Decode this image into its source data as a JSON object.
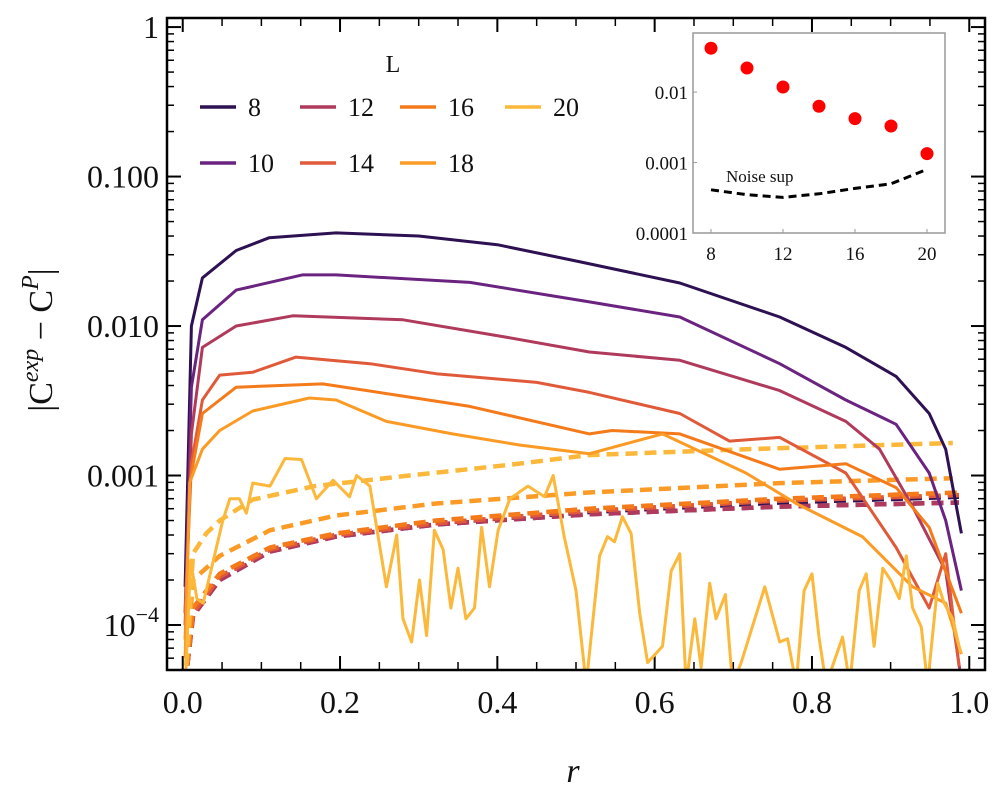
{
  "chart_data": {
    "type": "line",
    "xlabel": "r",
    "ylabel": {
      "base": "|C",
      "sup1": "exp",
      "mid": " − C",
      "sup2": "P",
      "end": "|"
    },
    "xlim": [
      -0.02,
      1.02
    ],
    "ylim": [
      5e-05,
      1.15
    ],
    "yscale": "log",
    "x_ticks": [
      {
        "v": 0.0,
        "label": "0.0"
      },
      {
        "v": 0.2,
        "label": "0.2"
      },
      {
        "v": 0.4,
        "label": "0.4"
      },
      {
        "v": 0.6,
        "label": "0.6"
      },
      {
        "v": 0.8,
        "label": "0.8"
      },
      {
        "v": 1.0,
        "label": "1.0"
      }
    ],
    "y_ticks": [
      {
        "v": 1,
        "label": "1"
      },
      {
        "v": 0.1,
        "label": "0.100"
      },
      {
        "v": 0.01,
        "label": "0.010"
      },
      {
        "v": 0.001,
        "label": "0.001"
      },
      {
        "v": 0.0001,
        "label": "10",
        "sup": "−4"
      }
    ],
    "grid": false,
    "legend": {
      "title": "L",
      "placement": "top-left",
      "columns": 4
    },
    "series": [
      {
        "name": "8",
        "color": "#2d1152",
        "x": [
          0.003,
          0.011,
          0.025,
          0.068,
          0.11,
          0.195,
          0.3,
          0.4,
          0.504,
          0.632,
          0.759,
          0.843,
          0.907,
          0.949,
          0.97,
          0.99
        ],
        "y": [
          0.00018,
          0.01,
          0.021,
          0.032,
          0.039,
          0.042,
          0.04,
          0.035,
          0.027,
          0.0194,
          0.0115,
          0.0072,
          0.0046,
          0.0026,
          0.0015,
          0.00041
        ],
        "noise_x": [
          0.003,
          0.013,
          0.047,
          0.111,
          0.195,
          0.322,
          0.516,
          0.759,
          0.987
        ],
        "noise_y": [
          4e-05,
          0.00012,
          0.00021,
          0.00032,
          0.0004,
          0.00048,
          0.00057,
          0.00066,
          0.00072
        ]
      },
      {
        "name": "10",
        "color": "#6b2380",
        "x": [
          0.003,
          0.011,
          0.025,
          0.068,
          0.152,
          0.195,
          0.365,
          0.517,
          0.632,
          0.759,
          0.843,
          0.907,
          0.949,
          0.97,
          0.99
        ],
        "y": [
          0.00012,
          0.0039,
          0.011,
          0.0174,
          0.022,
          0.022,
          0.0196,
          0.0145,
          0.0115,
          0.0056,
          0.0032,
          0.0022,
          0.00104,
          0.0005,
          0.00017
        ],
        "noise_x": [
          0.003,
          0.013,
          0.047,
          0.111,
          0.195,
          0.322,
          0.516,
          0.759,
          0.987
        ],
        "noise_y": [
          4e-05,
          0.000115,
          0.0002,
          0.00031,
          0.00039,
          0.00047,
          0.00055,
          0.00062,
          0.00066
        ]
      },
      {
        "name": "12",
        "color": "#b03a5c",
        "x": [
          0.003,
          0.011,
          0.025,
          0.068,
          0.14,
          0.28,
          0.407,
          0.517,
          0.632,
          0.759,
          0.843,
          0.886,
          0.928,
          0.97,
          0.988
        ],
        "y": [
          0.0001,
          0.0019,
          0.0072,
          0.01,
          0.0117,
          0.011,
          0.0085,
          0.0067,
          0.0059,
          0.0037,
          0.0023,
          0.0015,
          0.00062,
          0.00023,
          5e-05
        ],
        "noise_x": [
          0.003,
          0.013,
          0.047,
          0.111,
          0.195,
          0.322,
          0.516,
          0.759,
          0.987
        ],
        "noise_y": [
          4e-05,
          0.000115,
          0.0002,
          0.00031,
          0.00039,
          0.00047,
          0.00055,
          0.00062,
          0.00066
        ]
      },
      {
        "name": "14",
        "color": "#e05a3a",
        "x": [
          0.003,
          0.011,
          0.025,
          0.047,
          0.089,
          0.144,
          0.238,
          0.322,
          0.45,
          0.517,
          0.632,
          0.695,
          0.759,
          0.843,
          0.907,
          0.949,
          0.97,
          0.987
        ],
        "y": [
          0.00012,
          0.0012,
          0.0032,
          0.0047,
          0.0049,
          0.0062,
          0.0056,
          0.0048,
          0.0042,
          0.0036,
          0.0026,
          0.0017,
          0.0018,
          0.00104,
          0.00033,
          0.00013,
          0.0003,
          5.3e-05
        ],
        "noise_x": [
          0.003,
          0.013,
          0.047,
          0.111,
          0.195,
          0.322,
          0.516,
          0.759,
          0.987
        ],
        "noise_y": [
          4e-05,
          0.00012,
          0.00021,
          0.00032,
          0.0004,
          0.00048,
          0.00058,
          0.00068,
          0.00074
        ]
      },
      {
        "name": "16",
        "color": "#f47a1a",
        "x": [
          0.003,
          0.009,
          0.025,
          0.068,
          0.178,
          0.28,
          0.365,
          0.517,
          0.546,
          0.632,
          0.759,
          0.843,
          0.907,
          0.949,
          0.99
        ],
        "y": [
          8e-05,
          0.0009,
          0.0026,
          0.0039,
          0.0041,
          0.0034,
          0.0029,
          0.0019,
          0.002,
          0.0019,
          0.0011,
          0.0012,
          0.00083,
          0.00045,
          0.00012
        ],
        "noise_x": [
          0.003,
          0.013,
          0.047,
          0.111,
          0.195,
          0.322,
          0.516,
          0.759,
          0.987
        ],
        "noise_y": [
          4e-05,
          0.00013,
          0.00022,
          0.00033,
          0.00041,
          0.0005,
          0.0006,
          0.0007,
          0.00077
        ]
      },
      {
        "name": "18",
        "color": "#fb9b25",
        "x": [
          0.003,
          0.009,
          0.025,
          0.047,
          0.089,
          0.161,
          0.195,
          0.259,
          0.343,
          0.428,
          0.517,
          0.61,
          0.716,
          0.78,
          0.864,
          0.928,
          0.97,
          0.99
        ],
        "y": [
          6e-05,
          0.0009,
          0.0015,
          0.002,
          0.0027,
          0.0033,
          0.0032,
          0.0023,
          0.0019,
          0.0016,
          0.0014,
          0.0019,
          0.00104,
          0.00065,
          0.00039,
          0.00018,
          0.00014,
          6.4e-05
        ],
        "noise_x": [
          0.003,
          0.013,
          0.047,
          0.111,
          0.195,
          0.322,
          0.516,
          0.759,
          0.979
        ],
        "noise_y": [
          4e-05,
          0.0002,
          0.00029,
          0.00043,
          0.00054,
          0.00065,
          0.00077,
          0.00089,
          0.00096
        ]
      },
      {
        "name": "20",
        "color": "#fbb83a",
        "x": [
          0.004,
          0.01,
          0.018,
          0.026,
          0.051,
          0.06,
          0.072,
          0.081,
          0.089,
          0.111,
          0.13,
          0.151,
          0.17,
          0.191,
          0.212,
          0.221,
          0.238,
          0.259,
          0.272,
          0.28,
          0.291,
          0.301,
          0.31,
          0.32,
          0.331,
          0.341,
          0.35,
          0.36,
          0.371,
          0.38,
          0.39,
          0.401,
          0.416,
          0.439,
          0.46,
          0.471,
          0.485,
          0.5,
          0.513,
          0.53,
          0.54,
          0.549,
          0.559,
          0.57,
          0.581,
          0.591,
          0.61,
          0.621,
          0.632,
          0.64,
          0.651,
          0.659,
          0.67,
          0.678,
          0.69,
          0.699,
          0.71,
          0.74,
          0.759,
          0.769,
          0.78,
          0.79,
          0.8,
          0.809,
          0.818,
          0.839,
          0.848,
          0.86,
          0.869,
          0.879,
          0.89,
          0.9,
          0.911,
          0.92,
          0.928,
          0.939,
          0.947,
          0.96,
          0.968,
          0.979,
          0.989
        ],
        "y": [
          5e-05,
          0.00027,
          0.00015,
          0.00014,
          0.0005,
          0.0007,
          0.0007,
          0.00056,
          0.00089,
          0.00085,
          0.0013,
          0.00128,
          0.0007,
          0.00093,
          0.00072,
          0.001,
          0.00085,
          0.00018,
          0.0004,
          0.00011,
          7.7e-05,
          0.0002,
          8.5e-05,
          0.00043,
          0.00032,
          0.00013,
          0.00024,
          0.00011,
          0.00013,
          0.00045,
          0.00018,
          0.00043,
          0.0007,
          0.00085,
          0.00072,
          0.001,
          0.00039,
          0.00017,
          4e-05,
          0.00029,
          0.00039,
          0.00036,
          0.00053,
          0.00041,
          0.00012,
          5.6e-05,
          7.2e-05,
          0.00023,
          0.0003,
          4e-05,
          0.00011,
          5.2e-05,
          0.00019,
          0.00011,
          0.00016,
          4e-05,
          5.6e-05,
          0.00018,
          7.7e-05,
          8.1e-05,
          4e-05,
          0.00017,
          0.00022,
          8.3e-05,
          4e-05,
          8.3e-05,
          4e-05,
          0.00017,
          0.00022,
          7.2e-05,
          0.00024,
          0.0002,
          0.00015,
          0.00029,
          0.00013,
          9.7e-05,
          4e-05,
          0.00019,
          0.00014,
          0.00011,
          6.5e-05
        ],
        "noise_x": [
          0.003,
          0.013,
          0.03,
          0.047,
          0.089,
          0.168,
          0.288,
          0.416,
          0.516,
          0.716,
          0.979
        ],
        "noise_y": [
          4e-05,
          0.0003,
          0.00041,
          0.0005,
          0.00069,
          0.00085,
          0.001,
          0.00118,
          0.00137,
          0.0015,
          0.00165
        ]
      }
    ],
    "inset": {
      "type": "scatter",
      "xlim": [
        7,
        21
      ],
      "ylim": [
        0.0001,
        0.069
      ],
      "yscale": "log",
      "x_ticks": [
        {
          "v": 8,
          "label": "8"
        },
        {
          "v": 12,
          "label": "12"
        },
        {
          "v": 16,
          "label": "16"
        },
        {
          "v": 20,
          "label": "20"
        }
      ],
      "y_ticks": [
        {
          "v": 0.01,
          "label": "0.01"
        },
        {
          "v": 0.001,
          "label": "0.001"
        },
        {
          "v": 0.0001,
          "label": "0.0001"
        }
      ],
      "points": {
        "color": "#ff0000",
        "x": [
          8,
          10,
          12,
          14,
          16,
          18,
          20
        ],
        "y": [
          0.042,
          0.022,
          0.0118,
          0.0063,
          0.0042,
          0.0033,
          0.00134
        ]
      },
      "noise": {
        "label": "Noise sup",
        "color": "#000000",
        "x": [
          8,
          10,
          12,
          14,
          16,
          18,
          20
        ],
        "y": [
          0.00041,
          0.00035,
          0.00032,
          0.00036,
          0.00043,
          0.0005,
          0.0008
        ]
      }
    }
  }
}
